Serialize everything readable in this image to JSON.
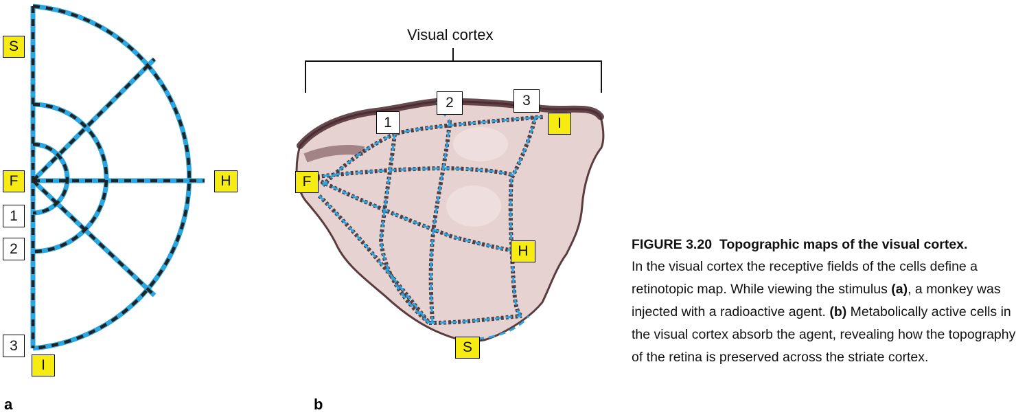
{
  "figure": {
    "number_title": "FIGURE 3.20",
    "title": "Topographic maps of the visual cortex.",
    "caption_parts": [
      {
        "text": "In the visual cortex the receptive fields of the cells define a retinotopic map. While viewing the stimulus ",
        "bold": false
      },
      {
        "text": "(a)",
        "bold": true
      },
      {
        "text": ", a monkey was injected with a radioactive agent. ",
        "bold": false
      },
      {
        "text": "(b)",
        "bold": true
      },
      {
        "text": " Metabolically active cells in the visual cortex absorb the agent, revealing how the topography of the retina is preserved across the striate cortex.",
        "bold": false
      }
    ]
  },
  "panel_a": {
    "letter": "a",
    "labels": {
      "S": "S",
      "F": "F",
      "H": "H",
      "I": "I",
      "ring1": "1",
      "ring2": "2",
      "ring3": "3"
    }
  },
  "panel_b": {
    "letter": "b",
    "bracket_label": "Visual cortex",
    "labels": {
      "one": "1",
      "two": "2",
      "three": "3",
      "I": "I",
      "F": "F",
      "H": "H",
      "S": "S"
    }
  },
  "colors": {
    "stimulus_blue": "#2aa6e0",
    "dash_black": "#222222",
    "label_yellow": "#f7ec12",
    "cortex_tissue": "#e7d2d2"
  }
}
